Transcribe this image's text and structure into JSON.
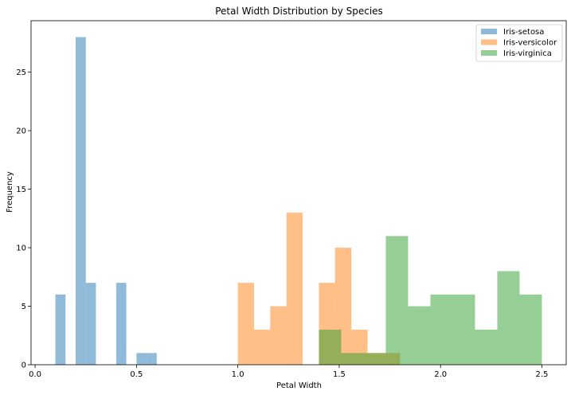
{
  "chart_data": {
    "type": "bar",
    "title": "Petal Width Distribution by Species",
    "xlabel": "Petal Width",
    "ylabel": "Frequency",
    "xlim": [
      -0.02,
      2.62
    ],
    "ylim": [
      0,
      29.4
    ],
    "xticks": [
      0.0,
      0.5,
      1.0,
      1.5,
      2.0,
      2.5
    ],
    "xtick_labels": [
      "0.0",
      "0.5",
      "1.0",
      "1.5",
      "2.0",
      "2.5"
    ],
    "yticks": [
      0,
      5,
      10,
      15,
      20,
      25
    ],
    "ytick_labels": [
      "0",
      "5",
      "10",
      "15",
      "20",
      "25"
    ],
    "grid": false,
    "legend_position": "top-right",
    "alpha": 0.5,
    "series": [
      {
        "name": "Iris-setosa",
        "color": "#1f77b4",
        "bin_edges": [
          0.1,
          0.15,
          0.2,
          0.25,
          0.3,
          0.35,
          0.4,
          0.45,
          0.5,
          0.55,
          0.6
        ],
        "counts": [
          6,
          0,
          28,
          7,
          0,
          0,
          7,
          0,
          1,
          1
        ]
      },
      {
        "name": "Iris-versicolor",
        "color": "#ff7f0e",
        "bin_edges": [
          1.0,
          1.08,
          1.16,
          1.24,
          1.32,
          1.4,
          1.48,
          1.56,
          1.64,
          1.72,
          1.8
        ],
        "counts": [
          7,
          3,
          5,
          13,
          0,
          7,
          10,
          3,
          1,
          1
        ]
      },
      {
        "name": "Iris-virginica",
        "color": "#2ca02c",
        "bin_edges": [
          1.4,
          1.51,
          1.62,
          1.73,
          1.84,
          1.95,
          2.06,
          2.17,
          2.28,
          2.39,
          2.5
        ],
        "counts": [
          3,
          1,
          1,
          11,
          5,
          6,
          6,
          3,
          8,
          6
        ]
      }
    ]
  }
}
